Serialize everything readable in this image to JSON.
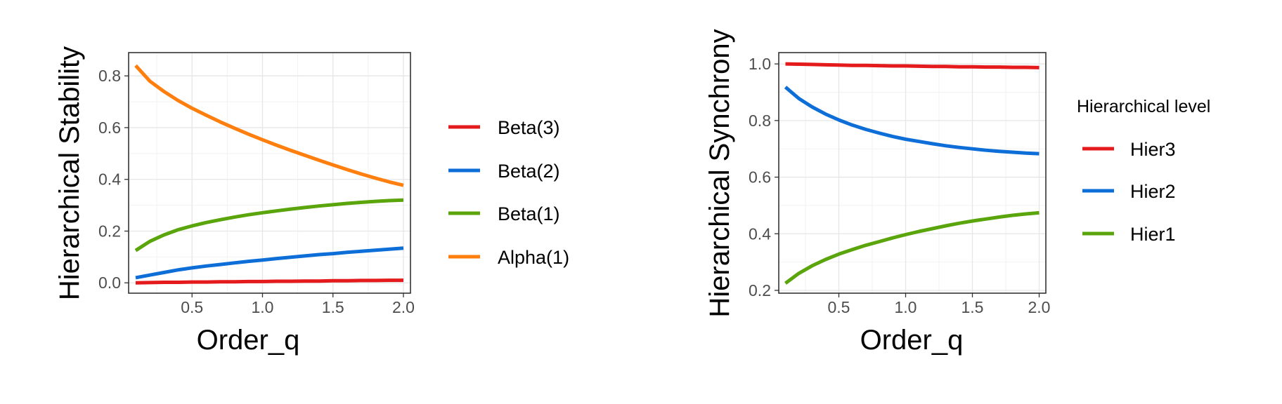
{
  "chart_data": [
    {
      "type": "line",
      "xlabel": "Order_q",
      "ylabel": "Hierarchical Stability",
      "xlim": [
        0.05,
        2.05
      ],
      "ylim": [
        -0.04,
        0.89
      ],
      "xticks": [
        0.5,
        1.0,
        1.5,
        2.0
      ],
      "xtick_labels": [
        "0.5",
        "1.0",
        "1.5",
        "2.0"
      ],
      "yticks": [
        0.0,
        0.2,
        0.4,
        0.6,
        0.8
      ],
      "ytick_labels": [
        "0.0",
        "0.2",
        "0.4",
        "0.6",
        "0.8"
      ],
      "grid": true,
      "legend_title": "",
      "legend_position": "right",
      "x": [
        0.1,
        0.2,
        0.3,
        0.4,
        0.5,
        0.6,
        0.7,
        0.8,
        0.9,
        1.0,
        1.1,
        1.2,
        1.3,
        1.4,
        1.5,
        1.6,
        1.7,
        1.8,
        1.9,
        2.0
      ],
      "series": [
        {
          "name": "Beta(3)",
          "color": "#e41a1c",
          "values": [
            0.0,
            0.001,
            0.002,
            0.002,
            0.003,
            0.003,
            0.004,
            0.004,
            0.005,
            0.005,
            0.006,
            0.006,
            0.007,
            0.007,
            0.008,
            0.008,
            0.009,
            0.009,
            0.01,
            0.01
          ]
        },
        {
          "name": "Beta(2)",
          "color": "#0e6ed8",
          "values": [
            0.02,
            0.03,
            0.04,
            0.05,
            0.058,
            0.065,
            0.071,
            0.077,
            0.083,
            0.088,
            0.094,
            0.099,
            0.104,
            0.109,
            0.113,
            0.118,
            0.122,
            0.126,
            0.13,
            0.134
          ]
        },
        {
          "name": "Beta(1)",
          "color": "#5aa50b",
          "values": [
            0.125,
            0.16,
            0.185,
            0.205,
            0.22,
            0.233,
            0.244,
            0.254,
            0.263,
            0.271,
            0.278,
            0.285,
            0.291,
            0.297,
            0.302,
            0.307,
            0.311,
            0.315,
            0.318,
            0.32
          ]
        },
        {
          "name": "Alpha(1)",
          "color": "#ff7f0e",
          "values": [
            0.84,
            0.78,
            0.74,
            0.705,
            0.675,
            0.648,
            0.622,
            0.598,
            0.575,
            0.553,
            0.532,
            0.512,
            0.493,
            0.474,
            0.456,
            0.438,
            0.421,
            0.405,
            0.39,
            0.377
          ]
        }
      ]
    },
    {
      "type": "line",
      "xlabel": "Order_q",
      "ylabel": "Hierarchical Synchrony",
      "xlim": [
        0.05,
        2.05
      ],
      "ylim": [
        0.19,
        1.04
      ],
      "xticks": [
        0.5,
        1.0,
        1.5,
        2.0
      ],
      "xtick_labels": [
        "0.5",
        "1.0",
        "1.5",
        "2.0"
      ],
      "yticks": [
        0.2,
        0.4,
        0.6,
        0.8,
        1.0
      ],
      "ytick_labels": [
        "0.2",
        "0.4",
        "0.6",
        "0.8",
        "1.0"
      ],
      "grid": true,
      "legend_title": "Hierarchical level",
      "legend_position": "right",
      "x": [
        0.1,
        0.2,
        0.3,
        0.4,
        0.5,
        0.6,
        0.7,
        0.8,
        0.9,
        1.0,
        1.1,
        1.2,
        1.3,
        1.4,
        1.5,
        1.6,
        1.7,
        1.8,
        1.9,
        2.0
      ],
      "series": [
        {
          "name": "Hier3",
          "color": "#e41a1c",
          "values": [
            1.0,
            0.999,
            0.998,
            0.997,
            0.996,
            0.995,
            0.995,
            0.994,
            0.993,
            0.993,
            0.992,
            0.991,
            0.991,
            0.99,
            0.99,
            0.989,
            0.989,
            0.988,
            0.988,
            0.987
          ]
        },
        {
          "name": "Hier2",
          "color": "#0e6ed8",
          "values": [
            0.918,
            0.878,
            0.848,
            0.823,
            0.802,
            0.784,
            0.769,
            0.756,
            0.744,
            0.734,
            0.726,
            0.718,
            0.711,
            0.705,
            0.7,
            0.695,
            0.691,
            0.688,
            0.685,
            0.683
          ]
        },
        {
          "name": "Hier1",
          "color": "#5aa50b",
          "values": [
            0.225,
            0.26,
            0.287,
            0.309,
            0.328,
            0.344,
            0.359,
            0.372,
            0.385,
            0.397,
            0.408,
            0.418,
            0.428,
            0.437,
            0.445,
            0.452,
            0.459,
            0.465,
            0.47,
            0.474
          ]
        }
      ]
    }
  ]
}
